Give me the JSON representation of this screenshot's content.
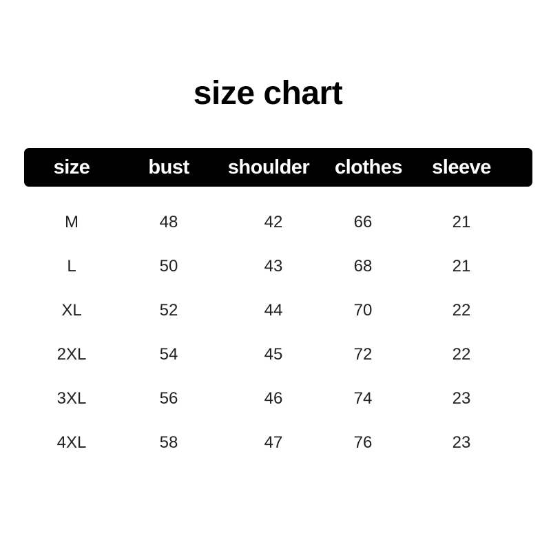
{
  "title": "size chart",
  "headers": [
    "size",
    "bust",
    "shoulder",
    "clothes",
    "sleeve"
  ],
  "rows": [
    [
      "M",
      "48",
      "42",
      "66",
      "21"
    ],
    [
      "L",
      "50",
      "43",
      "68",
      "21"
    ],
    [
      "XL",
      "52",
      "44",
      "70",
      "22"
    ],
    [
      "2XL",
      "54",
      "45",
      "72",
      "22"
    ],
    [
      "3XL",
      "56",
      "46",
      "74",
      "23"
    ],
    [
      "4XL",
      "58",
      "47",
      "76",
      "23"
    ]
  ]
}
